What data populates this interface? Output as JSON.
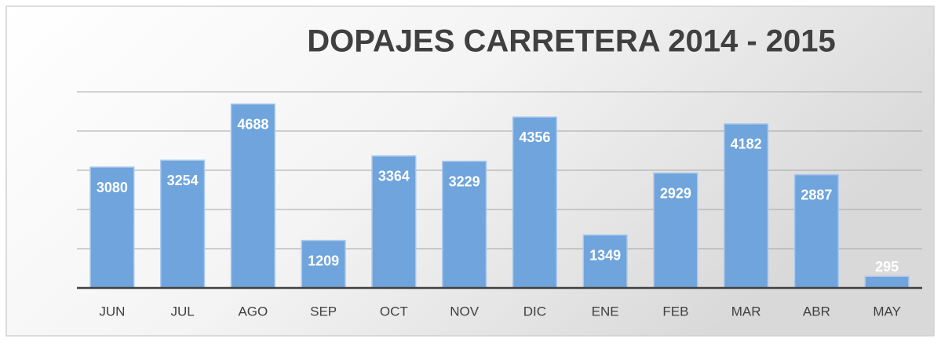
{
  "chart_data": {
    "type": "bar",
    "title": "DOPAJES CARRETERA 2014 - 2015",
    "categories": [
      "JUN",
      "JUL",
      "AGO",
      "SEP",
      "OCT",
      "NOV",
      "DIC",
      "ENE",
      "FEB",
      "MAR",
      "ABR",
      "MAY"
    ],
    "values": [
      3080,
      3254,
      4688,
      1209,
      3364,
      3229,
      4356,
      1349,
      2929,
      4182,
      2887,
      295
    ],
    "color": "#6fa4dc",
    "ylim": [
      0,
      5000
    ],
    "yticks": [
      0,
      1000,
      2000,
      3000,
      4000,
      5000
    ],
    "grid": true
  }
}
